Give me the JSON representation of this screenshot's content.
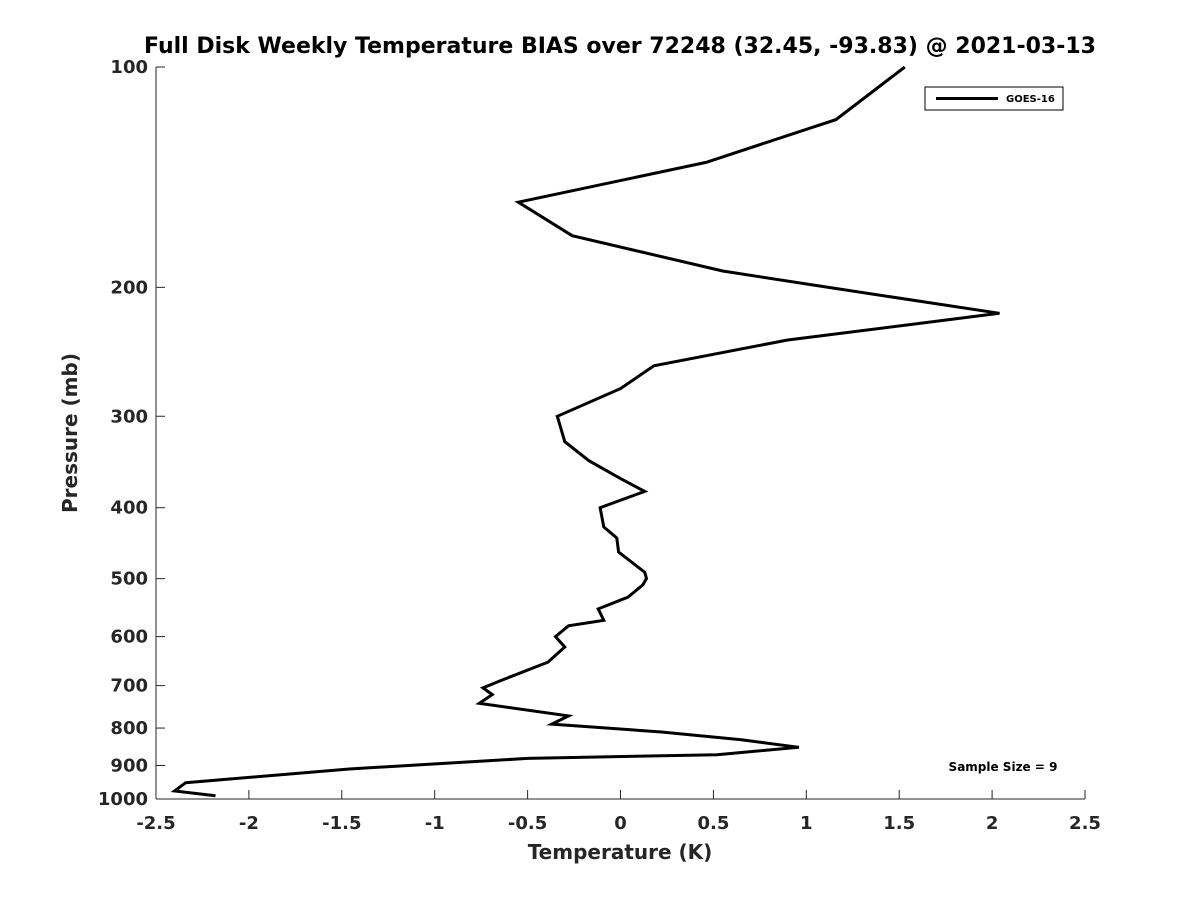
{
  "chart_data": {
    "type": "line",
    "title": "Full Disk Weekly Temperature BIAS over 72248 (32.45, -93.83) @ 2021-03-13",
    "xlabel": "Temperature (K)",
    "ylabel": "Pressure (mb)",
    "xlim": [
      -2.5,
      2.5
    ],
    "ylim": [
      100,
      1000
    ],
    "y_scale": "log",
    "y_reversed": true,
    "x_ticks": [
      -2.5,
      -2,
      -1.5,
      -1,
      -0.5,
      0,
      0.5,
      1,
      1.5,
      2,
      2.5
    ],
    "x_tick_labels": [
      "-2.5",
      "-2",
      "-1.5",
      "-1",
      "-0.5",
      "0",
      "0.5",
      "1",
      "1.5",
      "2",
      "2.5"
    ],
    "y_ticks": [
      100,
      200,
      300,
      400,
      500,
      600,
      700,
      800,
      900,
      1000
    ],
    "y_tick_labels": [
      "100",
      "200",
      "300",
      "400",
      "500",
      "600",
      "700",
      "800",
      "900",
      "1000"
    ],
    "grid": false,
    "legend_position": "top-right",
    "series": [
      {
        "name": "GOES-16",
        "color": "#000000",
        "points": [
          [
            1.53,
            100
          ],
          [
            1.16,
            118
          ],
          [
            0.46,
            135
          ],
          [
            -0.55,
            153
          ],
          [
            -0.26,
            170
          ],
          [
            0.55,
            190
          ],
          [
            1.12,
            200
          ],
          [
            2.04,
            217
          ],
          [
            0.9,
            236
          ],
          [
            0.18,
            256
          ],
          [
            0.0,
            275
          ],
          [
            -0.34,
            300
          ],
          [
            -0.3,
            325
          ],
          [
            -0.17,
            345
          ],
          [
            0.0,
            365
          ],
          [
            0.13,
            380
          ],
          [
            -0.11,
            400
          ],
          [
            -0.09,
            425
          ],
          [
            -0.02,
            440
          ],
          [
            -0.01,
            460
          ],
          [
            0.13,
            490
          ],
          [
            0.14,
            500
          ],
          [
            0.12,
            510
          ],
          [
            0.04,
            530
          ],
          [
            -0.12,
            550
          ],
          [
            -0.09,
            570
          ],
          [
            -0.28,
            580
          ],
          [
            -0.35,
            600
          ],
          [
            -0.3,
            620
          ],
          [
            -0.39,
            650
          ],
          [
            -0.65,
            690
          ],
          [
            -0.74,
            705
          ],
          [
            -0.69,
            720
          ],
          [
            -0.76,
            740
          ],
          [
            -0.28,
            770
          ],
          [
            -0.37,
            790
          ],
          [
            0.22,
            810
          ],
          [
            0.65,
            830
          ],
          [
            0.96,
            850
          ],
          [
            0.52,
            870
          ],
          [
            -0.5,
            880
          ],
          [
            -1.46,
            910
          ],
          [
            -2.34,
            950
          ],
          [
            -2.4,
            975
          ],
          [
            -2.18,
            990
          ]
        ]
      }
    ],
    "annotations": [
      "Sample Size = 9"
    ]
  }
}
